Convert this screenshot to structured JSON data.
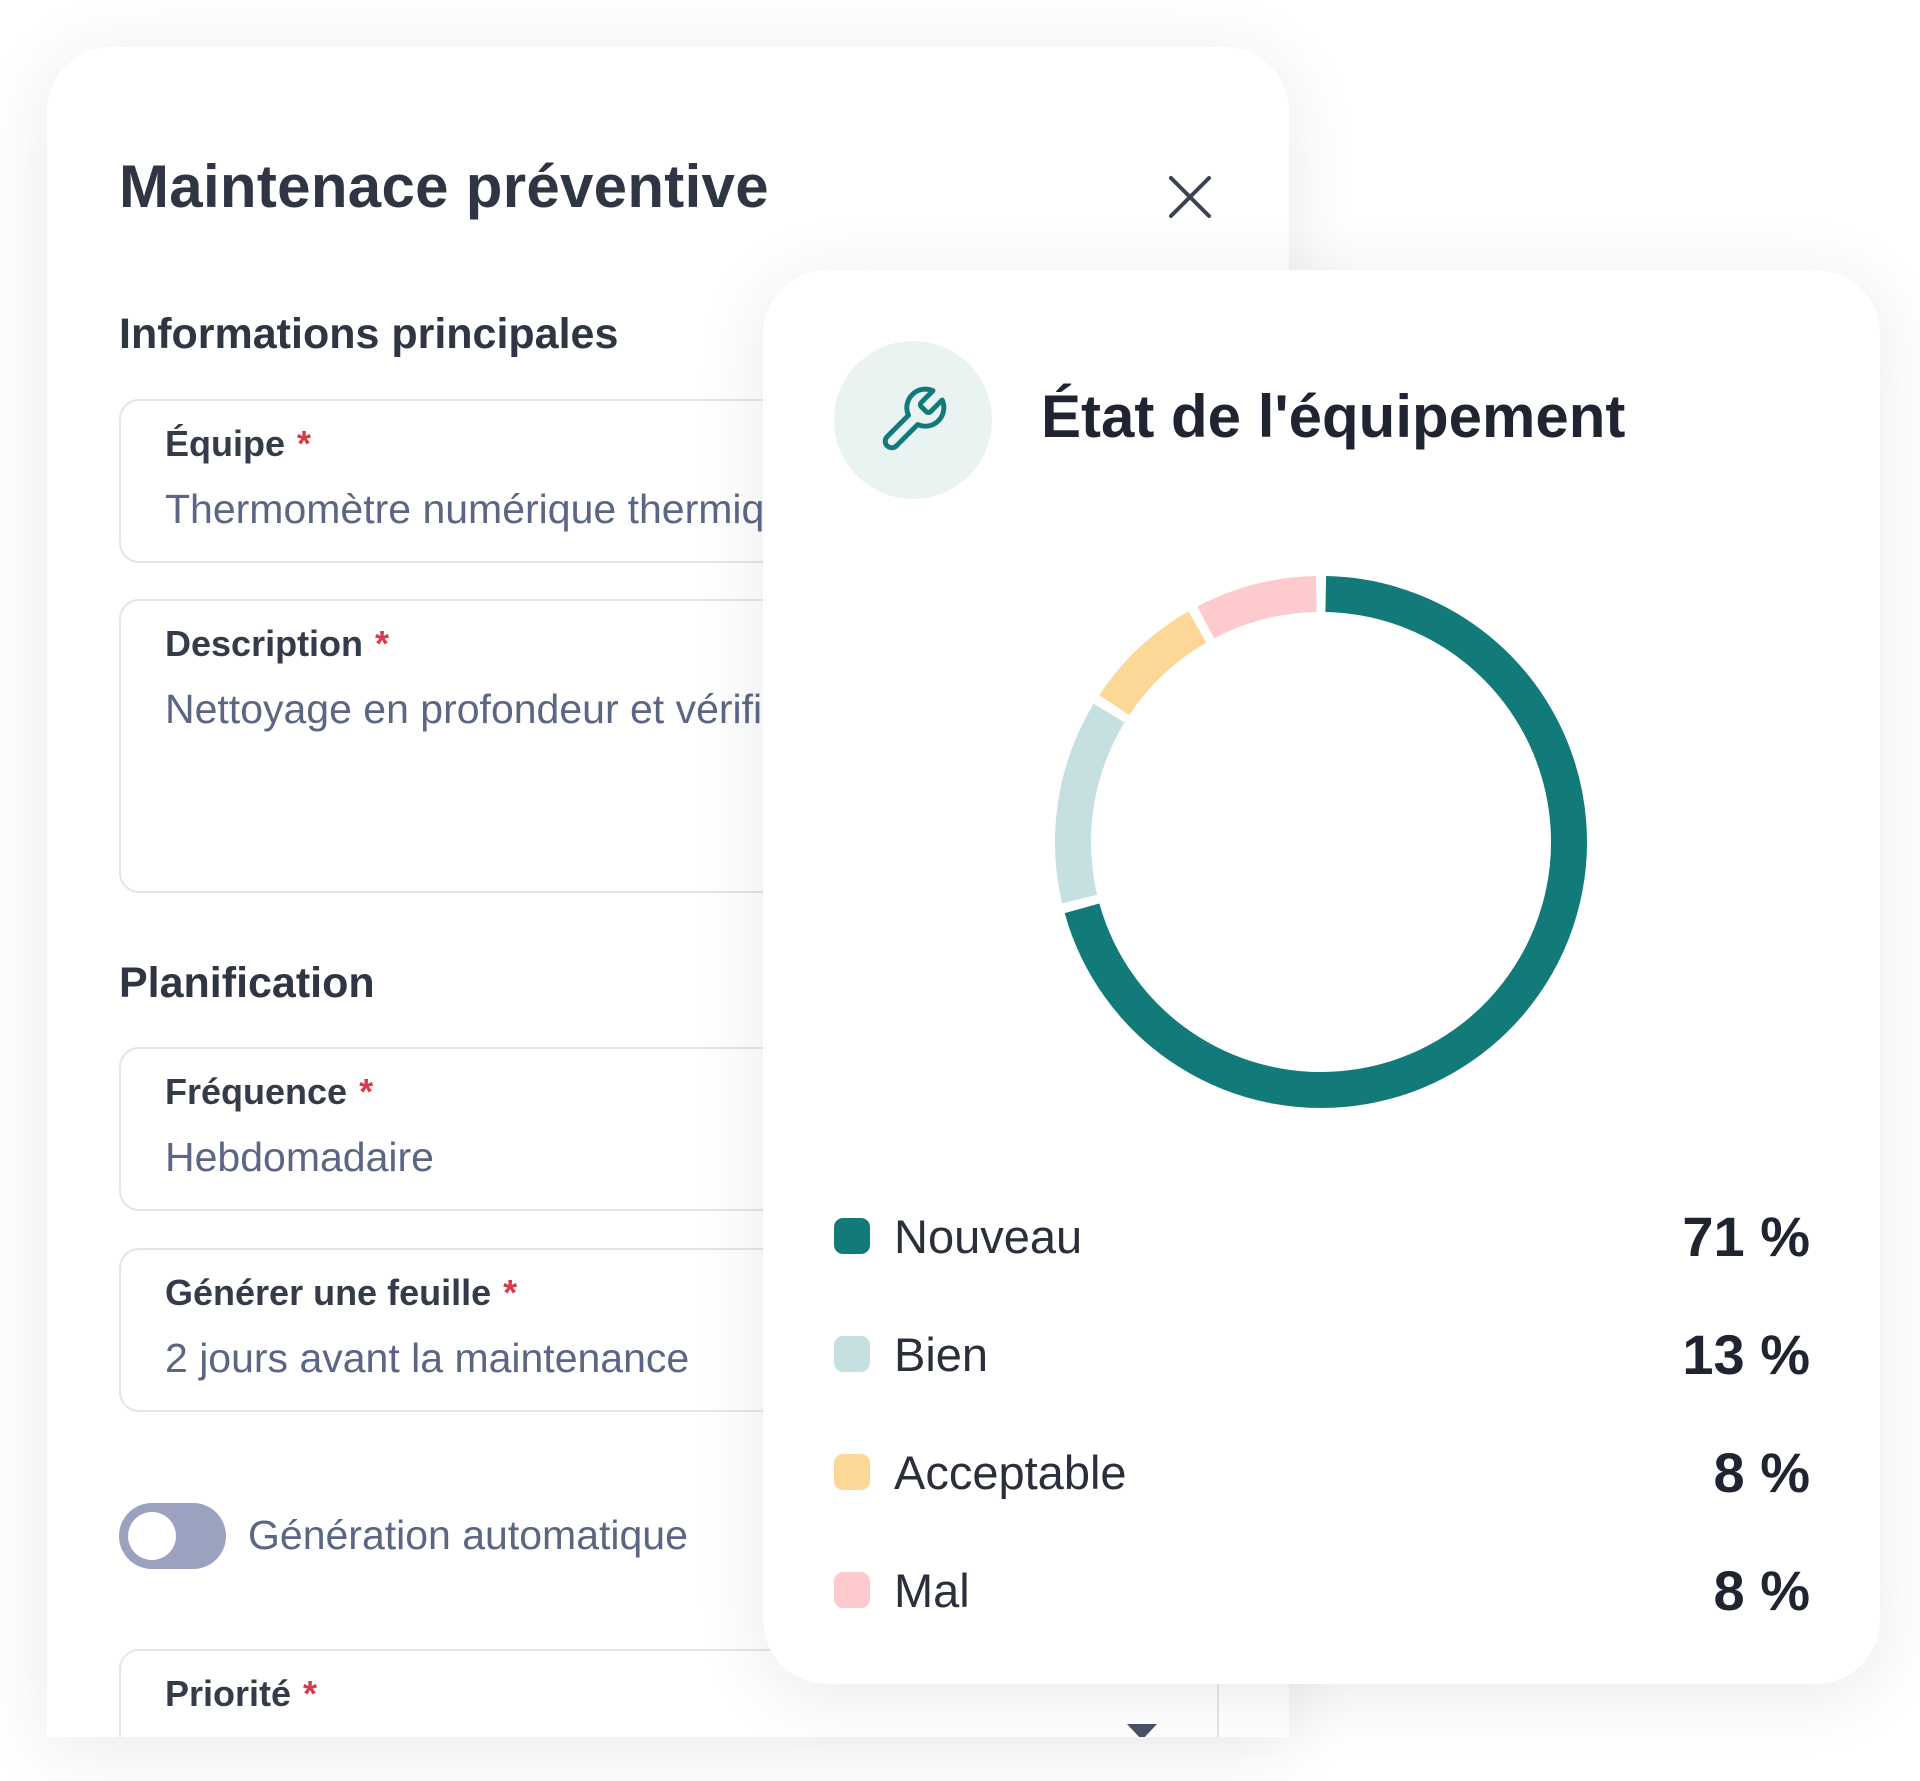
{
  "form": {
    "title": "Maintenace préventive",
    "sections": {
      "main": "Informations principales",
      "planning": "Planification"
    },
    "fields": {
      "equipment": {
        "label": "Équipe",
        "required_mark": "*",
        "value": "Thermomètre numérique thermique"
      },
      "description": {
        "label": "Description",
        "required_mark": "*",
        "value": "Nettoyage en profondeur et vérification de la batterie"
      },
      "frequency": {
        "label": "Fréquence",
        "required_mark": "*",
        "value": "Hebdomadaire"
      },
      "generate_sheet": {
        "label": "Générer une feuille",
        "required_mark": "*",
        "value": "2 jours avant la maintenance"
      },
      "priority": {
        "label": "Priorité",
        "required_mark": "*"
      }
    },
    "toggle": {
      "label": "Génération automatique",
      "on": false
    }
  },
  "status_card": {
    "title": "État de l'équipement",
    "icon": "wrench-icon"
  },
  "chart_data": {
    "type": "pie",
    "title": "État de l'équipement",
    "categories": [
      "Nouveau",
      "Bien",
      "Acceptable",
      "Mal"
    ],
    "values": [
      71,
      13,
      8,
      8
    ],
    "value_labels": [
      "71 %",
      "13 %",
      "8 %",
      "8 %"
    ],
    "colors": [
      "#137a7a",
      "#c6dfe0",
      "#fcd796",
      "#fdcace"
    ],
    "legend": "bottom"
  }
}
